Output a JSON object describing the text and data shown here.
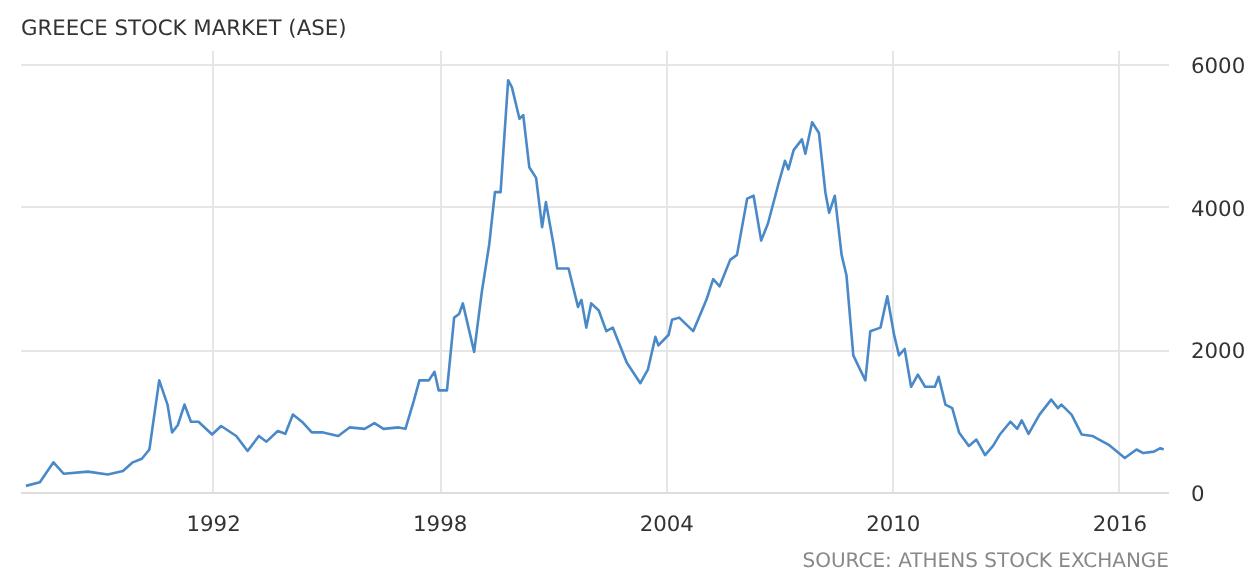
{
  "chart_data": {
    "type": "line",
    "title": "GREECE STOCK MARKET (ASE)",
    "annotations": [
      "SOURCE: ATHENS STOCK EXCHANGE"
    ],
    "x": [
      1987.03,
      1987.4,
      1987.76,
      1988.03,
      1988.67,
      1989.2,
      1989.6,
      1989.86,
      1990.1,
      1990.3,
      1990.56,
      1990.78,
      1990.9,
      1991.05,
      1991.23,
      1991.4,
      1991.6,
      1991.96,
      1992.2,
      1992.6,
      1992.9,
      1993.2,
      1993.4,
      1993.7,
      1993.9,
      1994.1,
      1994.34,
      1994.6,
      1994.9,
      1995.3,
      1995.6,
      1996.0,
      1996.26,
      1996.5,
      1996.9,
      1997.08,
      1997.3,
      1997.45,
      1997.7,
      1997.85,
      1997.96,
      1998.18,
      1998.37,
      1998.5,
      1998.6,
      1998.9,
      1999.1,
      1999.3,
      1999.45,
      1999.6,
      1999.8,
      1999.9,
      2000.1,
      2000.2,
      2000.36,
      2000.54,
      2000.7,
      2000.8,
      2001.0,
      2001.1,
      2001.4,
      2001.65,
      2001.74,
      2001.87,
      2002.0,
      2002.2,
      2002.4,
      2002.57,
      2002.94,
      2003.3,
      2003.5,
      2003.7,
      2003.78,
      2004.05,
      2004.14,
      2004.33,
      2004.7,
      2005.05,
      2005.23,
      2005.4,
      2005.68,
      2005.86,
      2006.13,
      2006.3,
      2006.5,
      2006.68,
      2006.95,
      2007.13,
      2007.22,
      2007.36,
      2007.58,
      2007.67,
      2007.85,
      2008.03,
      2008.2,
      2008.3,
      2008.45,
      2008.63,
      2008.76,
      2008.94,
      2009.12,
      2009.26,
      2009.39,
      2009.66,
      2009.84,
      2010.02,
      2010.15,
      2010.3,
      2010.47,
      2010.65,
      2010.84,
      2011.1,
      2011.2,
      2011.38,
      2011.56,
      2011.74,
      2012.0,
      2012.2,
      2012.43,
      2012.64,
      2012.82,
      2013.1,
      2013.28,
      2013.4,
      2013.58,
      2013.87,
      2014.18,
      2014.36,
      2014.45,
      2014.72,
      2014.99,
      2015.27,
      2015.45,
      2015.72,
      2016.13,
      2016.44,
      2016.62,
      2016.9,
      2017.07,
      2017.16
    ],
    "series": [
      {
        "color": "#4a89c8",
        "values": [
          100,
          150,
          430,
          270,
          300,
          260,
          310,
          430,
          480,
          610,
          1580,
          1240,
          850,
          950,
          1240,
          1000,
          1000,
          820,
          940,
          800,
          590,
          800,
          720,
          870,
          830,
          1100,
          1000,
          850,
          850,
          800,
          920,
          900,
          980,
          900,
          920,
          900,
          1290,
          1580,
          1580,
          1700,
          1440,
          1440,
          2460,
          2510,
          2660,
          1980,
          2810,
          3490,
          4220,
          4220,
          5790,
          5690,
          5250,
          5300,
          4570,
          4420,
          3730,
          4080,
          3490,
          3150,
          3150,
          2610,
          2710,
          2320,
          2660,
          2560,
          2270,
          2320,
          1830,
          1540,
          1730,
          2190,
          2070,
          2220,
          2430,
          2460,
          2270,
          2710,
          3000,
          2900,
          3270,
          3340,
          4130,
          4170,
          3540,
          3780,
          4320,
          4660,
          4540,
          4810,
          4960,
          4760,
          5200,
          5050,
          4220,
          3930,
          4170,
          3340,
          3050,
          1930,
          1730,
          1580,
          2270,
          2320,
          2760,
          2220,
          1930,
          2020,
          1490,
          1660,
          1490,
          1490,
          1630,
          1240,
          1190,
          850,
          660,
          750,
          530,
          660,
          820,
          1000,
          900,
          1020,
          830,
          1100,
          1310,
          1190,
          1240,
          1100,
          820,
          800,
          750,
          670,
          490,
          610,
          560,
          580,
          630,
          610
        ]
      }
    ],
    "xlim": [
      1986.9,
      2017.3
    ],
    "xticks": [
      1992,
      1998,
      2004,
      2010,
      2016
    ],
    "ylim": [
      0,
      6200
    ],
    "yticks": [
      0,
      2000,
      4000,
      6000
    ],
    "grid": true,
    "marker": "none",
    "line_style": "solid"
  }
}
